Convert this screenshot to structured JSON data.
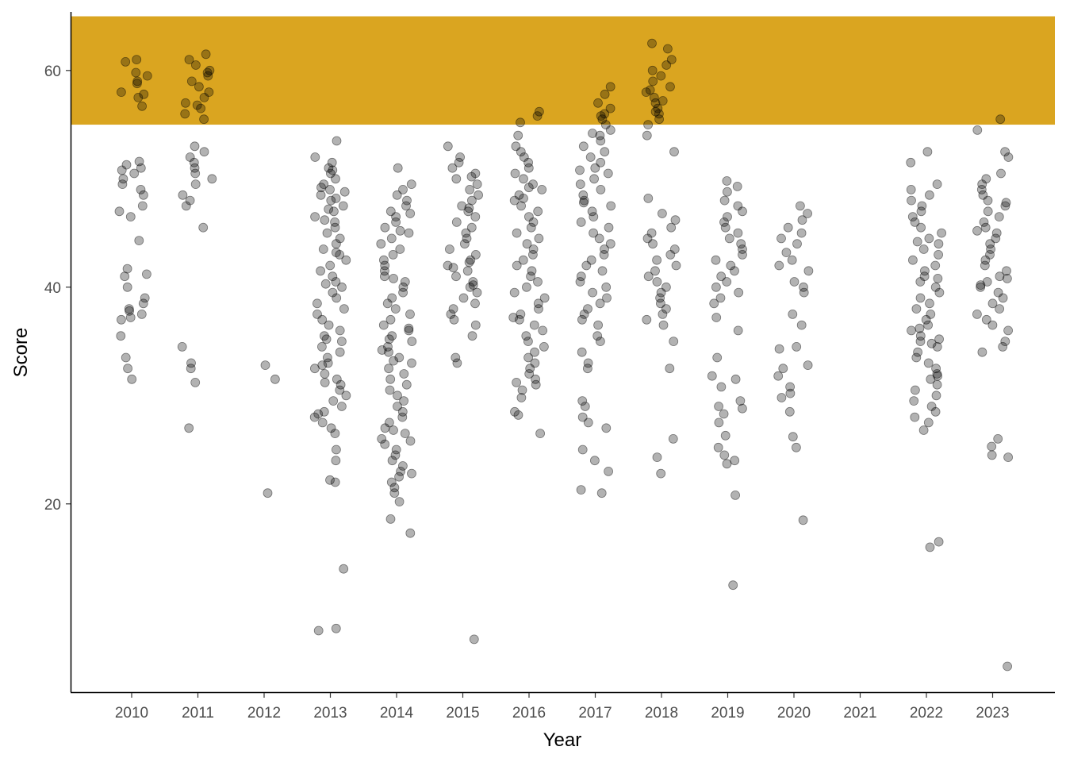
{
  "chart_data": {
    "type": "scatter",
    "title": "",
    "xlabel": "Year",
    "ylabel": "Score",
    "categories": [
      "2010",
      "2011",
      "2012",
      "2013",
      "2014",
      "2015",
      "2016",
      "2017",
      "2018",
      "2019",
      "2020",
      "2021",
      "2022",
      "2023"
    ],
    "ylim": [
      4,
      65
    ],
    "yticks": [
      20,
      40,
      60
    ],
    "grid": false,
    "legend": "none",
    "highlight_band": {
      "ymin": 55,
      "ymax": 65,
      "color": "#DAA520"
    },
    "point_color": "#000000",
    "point_opacity": 0.3,
    "series": [
      {
        "category": "2010",
        "values": [
          61,
          60.8,
          59.8,
          59.5,
          59,
          58.8,
          58,
          57.8,
          57.5,
          56.7,
          51.6,
          51.3,
          51,
          50.8,
          50.5,
          50,
          49.5,
          49,
          48.5,
          47.5,
          47,
          46.5,
          44.3,
          41.7,
          41,
          40,
          39,
          38.5,
          38,
          37.8,
          37.5,
          37,
          35.5,
          33.5,
          32.5,
          31.5,
          41.2,
          37.2
        ]
      },
      {
        "category": "2011",
        "values": [
          61.5,
          61,
          60.5,
          60,
          59.5,
          59,
          58.5,
          58,
          57.5,
          57,
          56.5,
          56,
          55.5,
          53,
          52.5,
          52,
          51.5,
          51,
          50.5,
          50,
          49.5,
          48.5,
          48,
          47.5,
          45.5,
          34.5,
          33,
          32.5,
          31.2,
          27,
          59.8,
          56.8
        ]
      },
      {
        "category": "2012",
        "values": [
          32.8,
          31.5,
          21
        ]
      },
      {
        "category": "2013",
        "values": [
          53.5,
          52,
          51.5,
          51,
          50.5,
          50,
          49.5,
          49,
          48.8,
          48.5,
          48,
          47.5,
          47,
          46.5,
          46,
          45.5,
          45,
          44.5,
          44,
          43.5,
          43,
          42.5,
          42,
          41.5,
          41,
          40.5,
          40,
          39.5,
          39,
          38.5,
          38,
          37.5,
          37,
          36.5,
          36,
          35.5,
          35,
          34.5,
          34,
          33.5,
          33,
          32.5,
          32,
          31.5,
          31,
          30.5,
          30,
          29.5,
          29,
          28.5,
          28,
          27.5,
          27,
          26.5,
          25,
          24,
          22.2,
          22,
          14,
          8.5,
          8.3,
          50.8,
          49.2,
          48.2,
          47.2,
          46.2,
          43.2,
          40.3,
          35.2,
          32.8,
          31.2,
          28.3
        ]
      },
      {
        "category": "2014",
        "values": [
          51,
          49.5,
          49,
          48.5,
          48,
          47.5,
          47,
          46.5,
          46,
          45.5,
          45,
          44.5,
          44,
          43.5,
          43,
          42.5,
          42,
          41.5,
          41,
          40.5,
          40,
          39.5,
          39,
          38.5,
          38,
          37.5,
          37,
          36.5,
          36,
          35.5,
          35,
          34.5,
          34,
          33.5,
          33,
          32.5,
          32,
          31.5,
          31,
          30.5,
          30,
          29.5,
          29,
          28.5,
          28,
          27.5,
          27,
          26.5,
          26,
          25.5,
          25,
          24.5,
          24,
          23.5,
          23,
          22.5,
          22,
          21.5,
          21,
          20.2,
          18.6,
          17.3,
          46.8,
          45.2,
          40.8,
          36.2,
          35.2,
          34.2,
          33.2,
          26.8,
          25.8,
          22.8
        ]
      },
      {
        "category": "2015",
        "values": [
          53,
          52,
          51.5,
          51,
          50.5,
          50,
          49.5,
          49,
          48.5,
          48,
          47.5,
          47,
          46.5,
          46,
          45.5,
          45,
          44.5,
          44,
          43.5,
          43,
          42.5,
          42,
          41.5,
          41,
          40.5,
          40,
          39.5,
          39,
          38.5,
          38,
          37.5,
          37,
          36.5,
          35.5,
          33.5,
          33,
          7.5,
          50.2,
          47.3,
          42.3,
          41.8,
          40.2
        ]
      },
      {
        "category": "2016",
        "values": [
          56.2,
          55.8,
          55.2,
          54,
          53,
          52.5,
          52,
          51.5,
          51,
          50.5,
          50,
          49.5,
          49,
          48.5,
          48,
          47.5,
          47,
          46.5,
          46,
          45.5,
          45,
          44.5,
          44,
          43.5,
          43,
          42.5,
          42,
          41.5,
          41,
          40.5,
          40,
          39.5,
          39,
          38.5,
          38,
          37.5,
          37,
          36.5,
          36,
          35.5,
          35,
          34.5,
          34,
          33.5,
          33,
          32.5,
          32,
          31.5,
          31,
          30.5,
          29.8,
          28.5,
          28.2,
          26.5,
          49.2,
          48.2,
          37.2,
          31.2
        ]
      },
      {
        "category": "2017",
        "values": [
          58.5,
          57.8,
          57,
          56.5,
          56,
          55.5,
          55,
          54.5,
          54,
          53.5,
          53,
          52.5,
          52,
          51.5,
          51,
          50.5,
          50,
          49.5,
          49,
          48.5,
          48,
          47.5,
          47,
          46.5,
          46,
          45.5,
          45,
          44.5,
          44,
          43.5,
          43,
          42.5,
          42,
          41.5,
          41,
          40.5,
          40,
          39.5,
          39,
          38.5,
          38,
          37.5,
          37,
          36.5,
          35.5,
          35,
          34,
          33,
          32.5,
          29.5,
          29,
          28,
          27.5,
          27,
          25,
          24,
          23,
          21.3,
          21,
          55.8,
          54.2,
          50.8,
          47.8
        ]
      },
      {
        "category": "2018",
        "values": [
          62.5,
          62,
          61,
          60.5,
          60,
          59.5,
          59,
          58.5,
          58,
          57.5,
          57,
          56.5,
          56,
          55.5,
          55,
          54,
          52.5,
          48.2,
          46.8,
          46.2,
          45.5,
          45,
          44.5,
          44,
          43.5,
          43,
          42.5,
          42,
          41.5,
          41,
          40.5,
          40,
          39.5,
          39,
          38.5,
          38,
          37.5,
          37,
          36.5,
          35,
          32.5,
          26,
          24.3,
          22.8,
          58.2,
          57.2,
          56.2
        ]
      },
      {
        "category": "2019",
        "values": [
          49.8,
          49.3,
          48.8,
          48,
          47.5,
          47,
          46.5,
          46,
          45.5,
          45,
          44.5,
          44,
          43.5,
          43,
          42.5,
          42,
          41.5,
          41,
          40.5,
          40,
          39.5,
          39,
          38.5,
          37.2,
          36,
          33.5,
          31.8,
          31.5,
          30.8,
          29.5,
          29,
          28.8,
          28.3,
          27.5,
          26.3,
          25.2,
          24.5,
          24,
          23.7,
          20.8,
          12.5
        ]
      },
      {
        "category": "2020",
        "values": [
          47.5,
          46.8,
          46.2,
          45.5,
          45,
          44.5,
          44,
          43.2,
          42.5,
          42,
          41.5,
          40.5,
          40,
          39.5,
          37.5,
          36.5,
          34.5,
          34.3,
          32.8,
          32.5,
          31.8,
          30.8,
          30.2,
          29.8,
          28.5,
          26.2,
          25.2,
          18.5
        ]
      },
      {
        "category": "2021",
        "values": []
      },
      {
        "category": "2022",
        "values": [
          52.5,
          51.5,
          49.5,
          49,
          48.5,
          48,
          47.5,
          47,
          46.5,
          46,
          45.5,
          45,
          44.5,
          44,
          43.5,
          43,
          42.5,
          42,
          41.5,
          41,
          40.5,
          40,
          39.5,
          39,
          38.5,
          38,
          37.5,
          37,
          36.5,
          36,
          35.5,
          35,
          34.5,
          34,
          33.5,
          33,
          32.5,
          32,
          31.5,
          31,
          30.5,
          30,
          29.5,
          29,
          28.5,
          28,
          27.5,
          26.8,
          16.5,
          16,
          44.2,
          40.8,
          36.2,
          35.2,
          34.8,
          31.8
        ]
      },
      {
        "category": "2023",
        "values": [
          55.5,
          54.5,
          52.5,
          52,
          50.5,
          50,
          49.5,
          49,
          48.5,
          48,
          47.5,
          47,
          46.5,
          46,
          45.5,
          45,
          44.5,
          44,
          43.5,
          43,
          42.5,
          42,
          41.5,
          41,
          40.5,
          40,
          39.5,
          39,
          38.5,
          38,
          37.5,
          37,
          36.5,
          36,
          35,
          34.5,
          34,
          26,
          25.3,
          24.5,
          24.3,
          5,
          47.8,
          45.2,
          40.8,
          40.2
        ]
      }
    ]
  }
}
